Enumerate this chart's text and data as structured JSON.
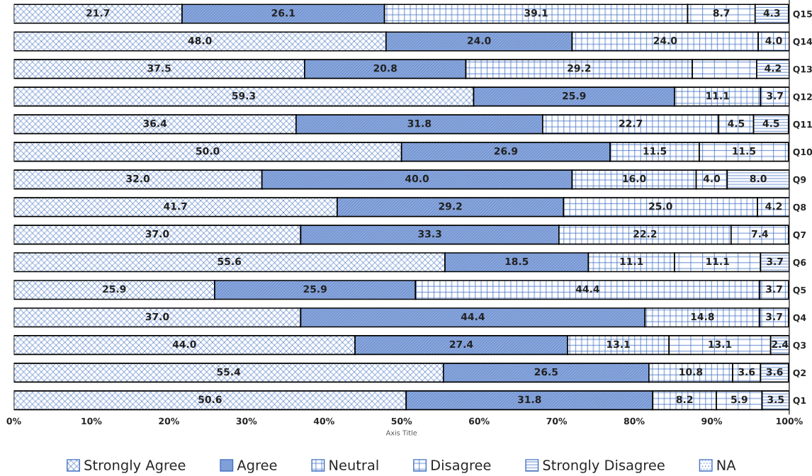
{
  "chart_data": {
    "type": "bar",
    "orientation": "horizontal",
    "stacked": true,
    "xlabel": "Axis Title",
    "categories": [
      "Q15",
      "Q14",
      "Q13",
      "Q12",
      "Q11",
      "Q10",
      "Q9",
      "Q8",
      "Q7",
      "Q6",
      "Q5",
      "Q4",
      "Q3",
      "Q2",
      "Q1"
    ],
    "series": [
      {
        "name": "Strongly Agree",
        "color": "#4472c4",
        "values": [
          21.7,
          48.0,
          37.5,
          59.3,
          36.4,
          50.0,
          32.0,
          41.7,
          37.0,
          55.6,
          25.9,
          37.0,
          44.0,
          55.4,
          50.6
        ],
        "value_labels": [
          "21.7",
          "48.0",
          "37.5",
          "59.3",
          "36.4",
          "50.0",
          "32.0",
          "41.7",
          "37.0",
          "55.6",
          "25.9",
          "37.0",
          "44.0",
          "55.4",
          "50.6"
        ]
      },
      {
        "name": "Agree",
        "color": "#8faadc",
        "values": [
          26.1,
          24.0,
          20.8,
          25.9,
          31.8,
          26.9,
          40.0,
          29.2,
          33.3,
          18.5,
          25.9,
          44.4,
          27.4,
          26.5,
          31.8
        ],
        "value_labels": [
          "26.1",
          "24.0",
          "20.8",
          "25.9",
          "31.8",
          "26.9",
          "40.0",
          "29.2",
          "33.3",
          "18.5",
          "25.9",
          "44.4",
          "27.4",
          "26.5",
          "31.8"
        ]
      },
      {
        "name": "Neutral",
        "color": "#4472c4",
        "values": [
          39.1,
          24.0,
          29.2,
          11.1,
          22.7,
          11.5,
          16.0,
          25.0,
          22.2,
          11.1,
          44.4,
          14.8,
          13.1,
          10.8,
          8.2
        ],
        "value_labels": [
          "39.1",
          "24.0",
          "29.2",
          "11.1",
          "22.7",
          "11.5",
          "16.0",
          "25.0",
          "22.2",
          "11.1",
          "44.4",
          "14.8",
          "13.1",
          "10.8",
          "8.2"
        ]
      },
      {
        "name": "Disagree",
        "color": "#4472c4",
        "values": [
          8.7,
          4.0,
          8.3,
          3.7,
          4.5,
          11.5,
          4.0,
          4.2,
          7.4,
          11.1,
          3.7,
          3.7,
          13.1,
          3.6,
          5.9
        ],
        "value_labels": [
          "8.7",
          "4.0",
          null,
          "3.7",
          "4.5",
          "11.5",
          "4.0",
          "4.2",
          "7.4",
          "11.1",
          "3.7",
          "3.7",
          "13.1",
          "3.6",
          "5.9"
        ]
      },
      {
        "name": "Strongly Disagree",
        "color": "#4472c4",
        "values": [
          4.3,
          null,
          4.2,
          null,
          4.5,
          null,
          8.0,
          null,
          null,
          3.7,
          null,
          null,
          2.4,
          3.6,
          3.5
        ],
        "value_labels": [
          "4.3",
          null,
          "4.2",
          null,
          "4.5",
          null,
          "8.0",
          null,
          null,
          "3.7",
          null,
          null,
          "2.4",
          "3.6",
          "3.5"
        ]
      },
      {
        "name": "NA",
        "color": "#4472c4",
        "values": [
          null,
          null,
          null,
          null,
          null,
          null,
          null,
          null,
          null,
          null,
          null,
          null,
          null,
          null,
          null
        ]
      }
    ],
    "xlim": [
      0,
      100
    ],
    "xticks": [
      {
        "value": 0,
        "label": "0%"
      },
      {
        "value": 10,
        "label": "10%"
      },
      {
        "value": 20,
        "label": "20%"
      },
      {
        "value": 30,
        "label": "30%"
      },
      {
        "value": 40,
        "label": "40%"
      },
      {
        "value": 50,
        "label": "50%"
      },
      {
        "value": 60,
        "label": "60%"
      },
      {
        "value": 70,
        "label": "70%"
      },
      {
        "value": 80,
        "label": "80%"
      },
      {
        "value": 90,
        "label": "90%"
      },
      {
        "value": 100,
        "label": "100%"
      }
    ],
    "legend": "bottom",
    "grid": false
  }
}
